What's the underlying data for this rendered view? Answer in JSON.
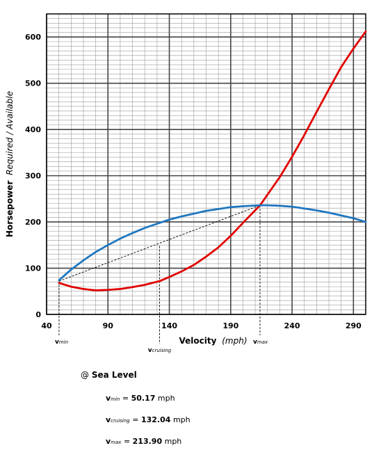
{
  "chart_data": {
    "type": "line",
    "xlabel": "Velocity",
    "xlabel_unit": "(mph)",
    "ylabel": "Horsepower",
    "ylabel_sub": "Required / Available",
    "xlim": [
      40,
      300
    ],
    "ylim": [
      0,
      650
    ],
    "x_ticks": [
      40,
      90,
      140,
      190,
      240,
      290
    ],
    "y_ticks": [
      0,
      100,
      200,
      300,
      400,
      500,
      600
    ],
    "grid": true,
    "series": [
      {
        "role": "required",
        "color": "#e10000",
        "x": [
          50.17,
          60,
          70,
          80,
          90,
          100,
          110,
          120,
          132.04,
          140,
          150,
          160,
          170,
          180,
          190,
          200,
          213.9,
          220,
          230,
          240,
          250,
          260,
          270,
          280,
          290,
          300
        ],
        "y": [
          68,
          60,
          55,
          52,
          53,
          55,
          59,
          64,
          72,
          81,
          93,
          107,
          125,
          145,
          170,
          198,
          236,
          259,
          297,
          341,
          388,
          438,
          487,
          535,
          575,
          612
        ]
      },
      {
        "role": "available",
        "color": "#1f77c0",
        "x": [
          50.17,
          60,
          70,
          80,
          90,
          100,
          110,
          120,
          132.04,
          140,
          150,
          160,
          170,
          180,
          190,
          200,
          213.9,
          220,
          230,
          240,
          250,
          260,
          270,
          280,
          290,
          300
        ],
        "y": [
          74,
          97,
          117,
          135,
          150,
          164,
          176,
          187,
          198,
          205,
          212,
          218,
          224,
          228,
          232,
          234,
          236,
          236,
          235,
          233,
          229,
          225,
          220,
          214,
          208,
          200
        ]
      }
    ],
    "markers": [
      {
        "sym": "v",
        "sub": "min",
        "x": 50.17,
        "y": 72
      },
      {
        "sym": "v",
        "sub": "cruising",
        "x": 132.04,
        "y": 148
      },
      {
        "sym": "v",
        "sub": "max",
        "x": 213.9,
        "y": 236
      }
    ]
  },
  "results": {
    "condition_prefix": "@",
    "condition": "Sea Level",
    "rows": [
      {
        "sym": "v",
        "sub": "min",
        "eq": "=",
        "value": "50.17",
        "unit": "mph"
      },
      {
        "sym": "v",
        "sub": "cruising",
        "eq": "=",
        "value": "132.04",
        "unit": "mph"
      },
      {
        "sym": "v",
        "sub": "max",
        "eq": "=",
        "value": "213.90",
        "unit": "mph"
      }
    ]
  }
}
